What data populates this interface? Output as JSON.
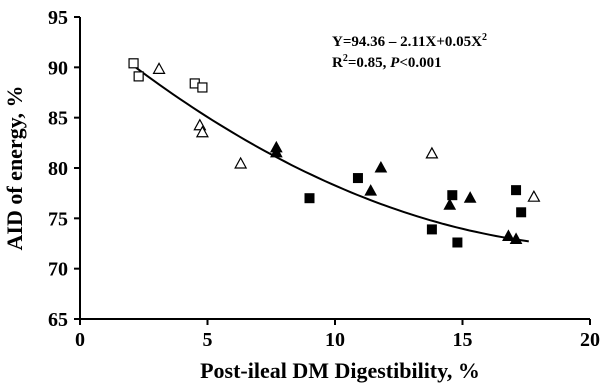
{
  "chart_data": {
    "type": "scatter",
    "xlabel": "Post-ileal DM Digestibility, %",
    "ylabel": "AID of energy, %",
    "xlim": [
      0,
      20
    ],
    "ylim": [
      65,
      95
    ],
    "x_ticks": [
      "0",
      "5",
      "10",
      "15",
      "20"
    ],
    "y_ticks": [
      "65",
      "70",
      "75",
      "80",
      "85",
      "90",
      "95"
    ],
    "grid": false,
    "legend": "none",
    "annotation": {
      "equation": "Y=94.36 – 2.11X+0.05X",
      "equation_sup": "2",
      "r2_label": "R",
      "r2_sup": "2",
      "r2_value": "=0.85, ",
      "p_label": "P",
      "p_value": "<0.001"
    },
    "fit_curve": {
      "type": "quadratic",
      "a": 94.36,
      "b": -2.11,
      "c": 0.05,
      "x_range": [
        2.1,
        17.6
      ]
    },
    "series": [
      {
        "marker": "open-square",
        "points": [
          [
            2.1,
            90.4
          ],
          [
            2.3,
            89.1
          ],
          [
            4.5,
            88.4
          ],
          [
            4.8,
            88.0
          ]
        ]
      },
      {
        "marker": "open-triangle",
        "points": [
          [
            3.1,
            89.8
          ],
          [
            4.7,
            84.2
          ],
          [
            4.8,
            83.5
          ],
          [
            6.3,
            80.4
          ],
          [
            13.8,
            81.4
          ],
          [
            17.8,
            77.1
          ]
        ]
      },
      {
        "marker": "filled-triangle",
        "points": [
          [
            7.7,
            82.0
          ],
          [
            7.7,
            81.5
          ],
          [
            11.4,
            77.7
          ],
          [
            11.8,
            80.0
          ],
          [
            14.5,
            76.3
          ],
          [
            15.3,
            77.0
          ],
          [
            16.8,
            73.2
          ],
          [
            17.1,
            72.9
          ]
        ]
      },
      {
        "marker": "filled-square",
        "points": [
          [
            9.0,
            77.0
          ],
          [
            10.9,
            79.0
          ],
          [
            13.8,
            73.9
          ],
          [
            14.6,
            77.3
          ],
          [
            14.8,
            72.6
          ],
          [
            17.1,
            77.8
          ],
          [
            17.3,
            75.6
          ]
        ]
      }
    ],
    "colors": {
      "marker": "#000000",
      "axis": "#000000"
    }
  }
}
